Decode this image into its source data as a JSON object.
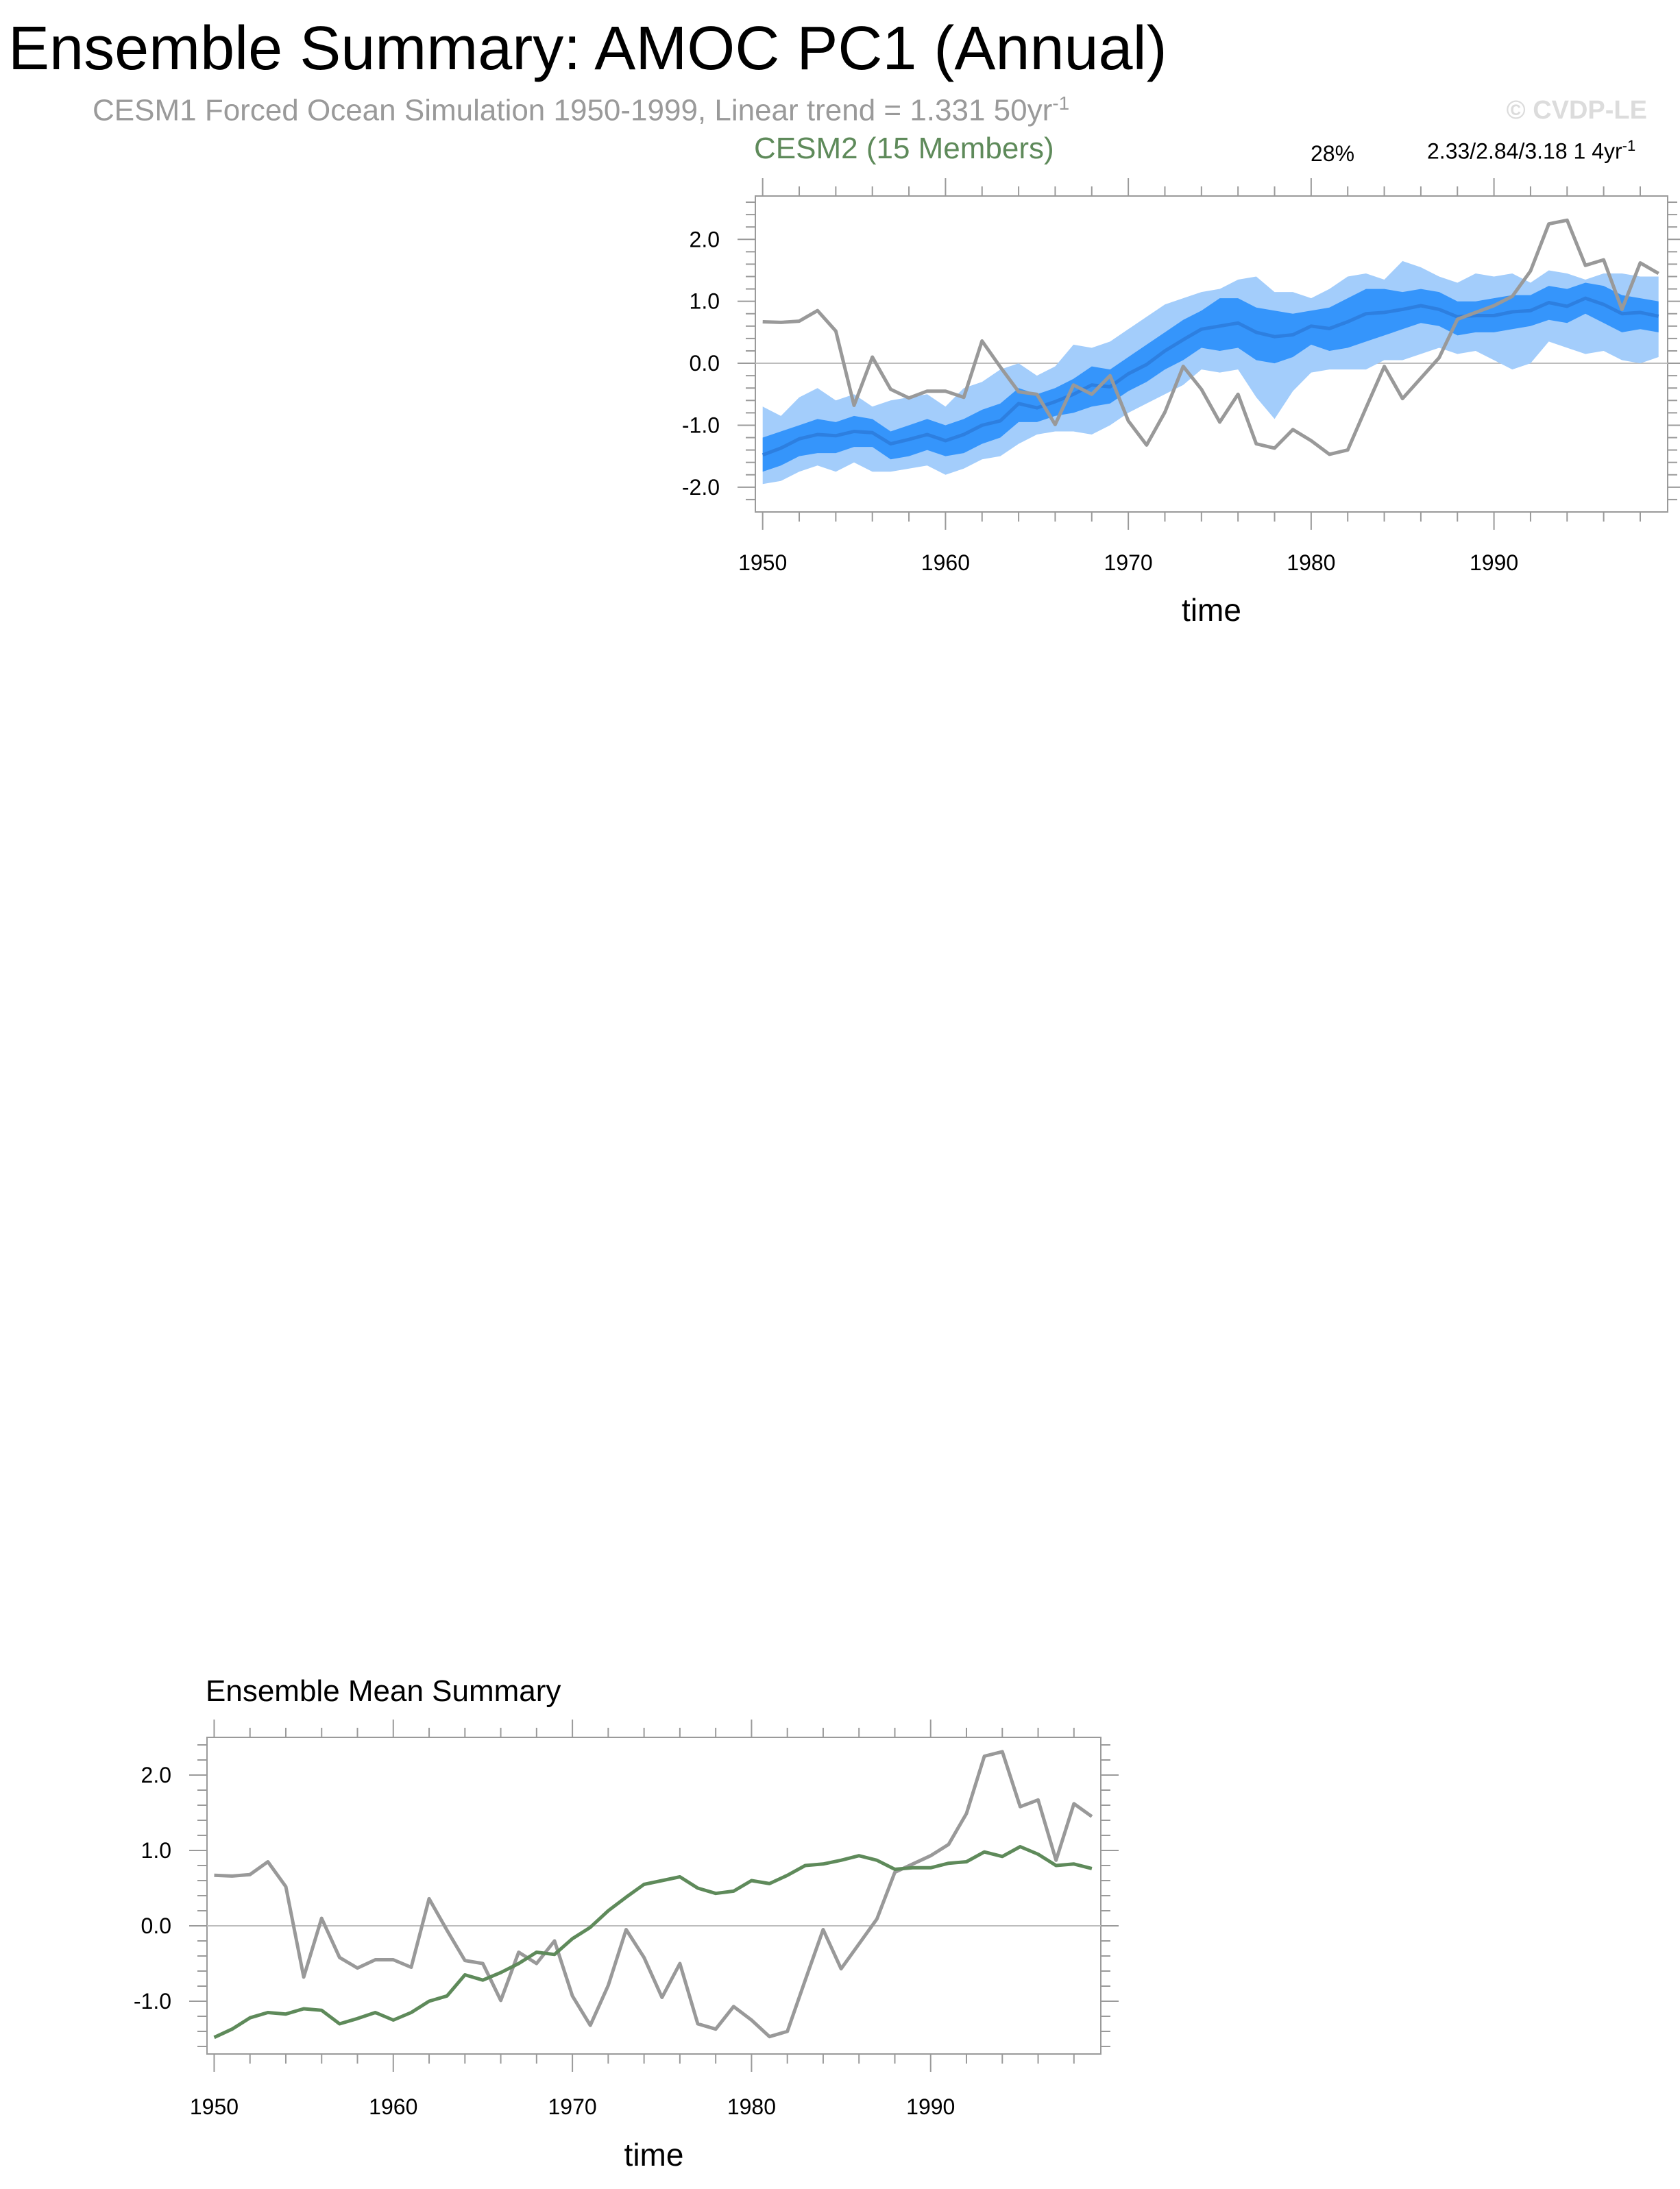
{
  "title": "Ensemble Summary: AMOC PC1 (Annual)",
  "subtitle": {
    "text": "CESM1 Forced Ocean Simulation 1950-1999, Linear trend = 1.331 50yr",
    "superscript": "-1"
  },
  "copyright": "© CVDP-LE",
  "colors": {
    "observed": "#999999",
    "ensemble_mean_green": "#5e8a5a",
    "band_outer": "#a3cdfb",
    "band_inner": "#3595fb",
    "band_mean": "#2d7fe0",
    "zero_line": "#bdbdbd",
    "axis": "#9a9a9a"
  },
  "chart_data": [
    {
      "type": "area",
      "name": "cesm2-ensemble-spread",
      "title": "CESM2 (15 Members)",
      "percent_label": "28%",
      "trend_label": {
        "text": "2.33/2.84/3.18 1 4yr",
        "superscript": "-1"
      },
      "xlabel": "time",
      "ylabel": "",
      "xlim": [
        1949.6,
        1999.5
      ],
      "ylim": [
        -2.4,
        2.7
      ],
      "x_ticks": [
        1950,
        1960,
        1970,
        1980,
        1990
      ],
      "y_ticks": [
        "2.0",
        "1.0",
        "0.0",
        "-1.0",
        "-2.0"
      ],
      "y_tick_values": [
        2,
        1,
        0,
        -1,
        -2
      ],
      "x": [
        1950,
        1951,
        1952,
        1953,
        1954,
        1955,
        1956,
        1957,
        1958,
        1959,
        1960,
        1961,
        1962,
        1963,
        1964,
        1965,
        1966,
        1967,
        1968,
        1969,
        1970,
        1971,
        1972,
        1973,
        1974,
        1975,
        1976,
        1977,
        1978,
        1979,
        1980,
        1981,
        1982,
        1983,
        1984,
        1985,
        1986,
        1987,
        1988,
        1989,
        1990,
        1991,
        1992,
        1993,
        1994,
        1995,
        1996,
        1997,
        1998,
        1999
      ],
      "series": [
        {
          "name": "observed",
          "color": "#999999",
          "values": [
            0.67,
            0.66,
            0.68,
            0.85,
            0.52,
            -0.68,
            0.1,
            -0.42,
            -0.56,
            -0.45,
            -0.45,
            -0.55,
            0.36,
            -0.06,
            -0.46,
            -0.5,
            -0.99,
            -0.35,
            -0.5,
            -0.2,
            -0.93,
            -1.32,
            -0.79,
            -0.05,
            -0.42,
            -0.95,
            -0.5,
            -1.3,
            -1.37,
            -1.07,
            -1.25,
            -1.47,
            -1.4,
            -0.72,
            -0.05,
            -0.57,
            -0.24,
            0.09,
            0.71,
            0.82,
            0.93,
            1.08,
            1.49,
            2.25,
            2.31,
            1.58,
            1.67,
            0.87,
            1.62,
            1.45
          ]
        },
        {
          "name": "ensemble-mean",
          "color": "#2d7fe0",
          "values": [
            -1.48,
            -1.37,
            -1.22,
            -1.15,
            -1.17,
            -1.1,
            -1.12,
            -1.3,
            -1.23,
            -1.15,
            -1.25,
            -1.15,
            -1.0,
            -0.93,
            -0.65,
            -0.72,
            -0.62,
            -0.5,
            -0.35,
            -0.38,
            -0.17,
            -0.02,
            0.2,
            0.38,
            0.55,
            0.6,
            0.65,
            0.5,
            0.43,
            0.46,
            0.6,
            0.56,
            0.67,
            0.8,
            0.82,
            0.87,
            0.93,
            0.87,
            0.75,
            0.77,
            0.77,
            0.83,
            0.85,
            0.98,
            0.92,
            1.05,
            0.95,
            0.8,
            0.82,
            0.76
          ]
        }
      ],
      "band_inner": {
        "upper": [
          -1.2,
          -1.1,
          -1.0,
          -0.9,
          -0.95,
          -0.85,
          -0.9,
          -1.1,
          -1.0,
          -0.9,
          -1.0,
          -0.9,
          -0.75,
          -0.65,
          -0.4,
          -0.5,
          -0.4,
          -0.25,
          -0.05,
          -0.1,
          0.1,
          0.3,
          0.5,
          0.7,
          0.85,
          1.05,
          1.05,
          0.9,
          0.85,
          0.8,
          0.85,
          0.9,
          1.05,
          1.2,
          1.2,
          1.15,
          1.2,
          1.15,
          1.0,
          1.0,
          1.05,
          1.1,
          1.1,
          1.25,
          1.2,
          1.3,
          1.25,
          1.1,
          1.05,
          1.0
        ],
        "lower": [
          -1.75,
          -1.65,
          -1.5,
          -1.45,
          -1.45,
          -1.35,
          -1.35,
          -1.55,
          -1.5,
          -1.4,
          -1.5,
          -1.45,
          -1.3,
          -1.2,
          -0.95,
          -0.95,
          -0.85,
          -0.8,
          -0.7,
          -0.65,
          -0.45,
          -0.3,
          -0.1,
          0.05,
          0.25,
          0.2,
          0.25,
          0.05,
          0.0,
          0.1,
          0.3,
          0.2,
          0.25,
          0.35,
          0.45,
          0.55,
          0.65,
          0.6,
          0.45,
          0.5,
          0.5,
          0.55,
          0.6,
          0.7,
          0.65,
          0.8,
          0.65,
          0.5,
          0.55,
          0.5
        ]
      },
      "band_outer": {
        "upper": [
          -0.7,
          -0.85,
          -0.55,
          -0.4,
          -0.6,
          -0.5,
          -0.7,
          -0.6,
          -0.55,
          -0.5,
          -0.7,
          -0.4,
          -0.3,
          -0.1,
          0.0,
          -0.2,
          -0.05,
          0.3,
          0.25,
          0.35,
          0.55,
          0.75,
          0.95,
          1.05,
          1.15,
          1.2,
          1.35,
          1.4,
          1.15,
          1.15,
          1.05,
          1.2,
          1.4,
          1.45,
          1.35,
          1.65,
          1.55,
          1.4,
          1.3,
          1.45,
          1.4,
          1.45,
          1.3,
          1.5,
          1.45,
          1.35,
          1.45,
          1.45,
          1.4,
          1.4
        ],
        "lower": [
          -1.95,
          -1.9,
          -1.75,
          -1.65,
          -1.75,
          -1.6,
          -1.75,
          -1.75,
          -1.7,
          -1.65,
          -1.8,
          -1.7,
          -1.55,
          -1.5,
          -1.3,
          -1.15,
          -1.1,
          -1.1,
          -1.15,
          -1.0,
          -0.8,
          -0.65,
          -0.5,
          -0.35,
          -0.1,
          -0.15,
          -0.1,
          -0.55,
          -0.9,
          -0.45,
          -0.15,
          -0.1,
          -0.1,
          -0.1,
          0.05,
          0.05,
          0.15,
          0.25,
          0.15,
          0.2,
          0.05,
          -0.1,
          0.0,
          0.35,
          0.25,
          0.15,
          0.2,
          0.05,
          0.0,
          0.1
        ]
      }
    },
    {
      "type": "line",
      "name": "ensemble-mean-summary",
      "title": "Ensemble Mean Summary",
      "xlabel": "time",
      "ylabel": "",
      "xlim": [
        1949.6,
        1999.5
      ],
      "ylim": [
        -1.7,
        2.5
      ],
      "x_ticks": [
        1950,
        1960,
        1970,
        1980,
        1990
      ],
      "y_ticks": [
        "2.0",
        "1.0",
        "0.0",
        "-1.0"
      ],
      "y_tick_values": [
        2,
        1,
        0,
        -1
      ],
      "series": [
        {
          "name": "observed",
          "ref": "observed"
        },
        {
          "name": "cesm2-ensemble-mean",
          "ref": "ensemble-mean",
          "color": "#5e8a5a"
        }
      ]
    }
  ]
}
